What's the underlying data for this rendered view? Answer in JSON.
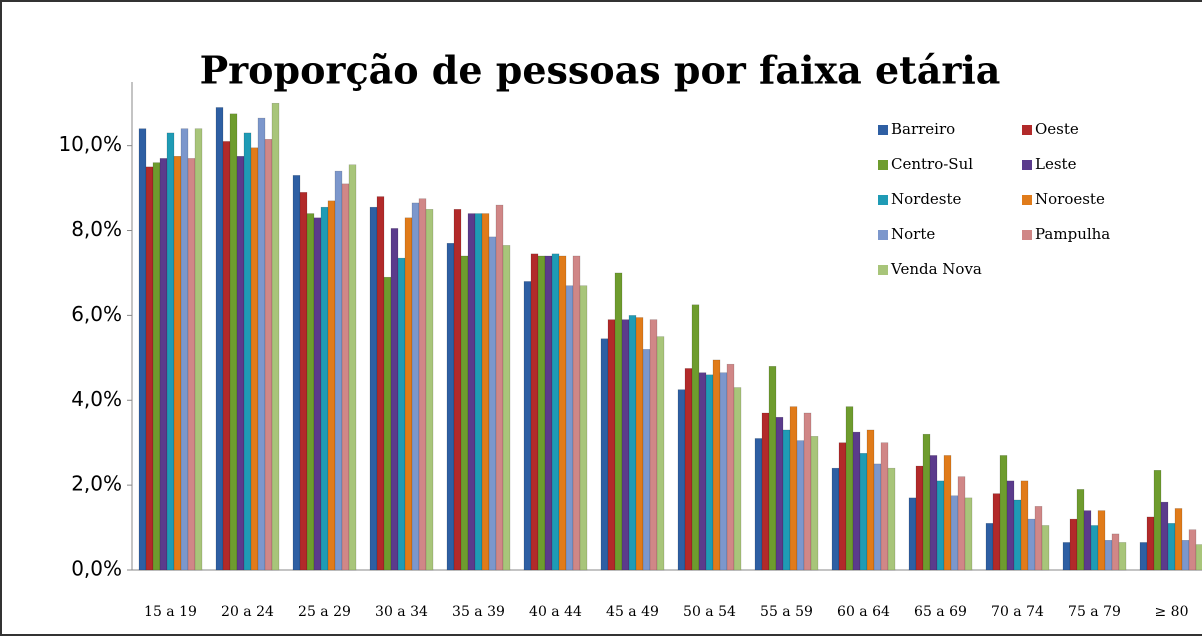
{
  "chart_data": {
    "type": "bar",
    "title": "Proporção de pessoas por faixa etária",
    "categories": [
      "15 a 19",
      "20 a 24",
      "25 a 29",
      "30 a 34",
      "35 a 39",
      "40 a 44",
      "45 a 49",
      "50 a 54",
      "55 a 59",
      "60 a 64",
      "65 a 69",
      "70 a 74",
      "75 a 79",
      "≥ 80"
    ],
    "series": [
      {
        "name": "Barreiro",
        "color": "#2e5fa3",
        "values": [
          10.4,
          10.9,
          9.3,
          8.55,
          7.7,
          6.8,
          5.45,
          4.25,
          3.1,
          2.4,
          1.7,
          1.1,
          0.65,
          0.65
        ]
      },
      {
        "name": "Oeste",
        "color": "#b22a2a",
        "values": [
          9.5,
          10.1,
          8.9,
          8.8,
          8.5,
          7.45,
          5.9,
          4.75,
          3.7,
          3.0,
          2.45,
          1.8,
          1.2,
          1.25
        ]
      },
      {
        "name": "Centro-Sul",
        "color": "#6e9c2e",
        "values": [
          9.6,
          10.75,
          8.4,
          6.9,
          7.4,
          7.4,
          7.0,
          6.25,
          4.8,
          3.85,
          3.2,
          2.7,
          1.9,
          2.35
        ]
      },
      {
        "name": "Leste",
        "color": "#5b3b8c",
        "values": [
          9.7,
          9.75,
          8.3,
          8.05,
          8.4,
          7.4,
          5.9,
          4.65,
          3.6,
          3.25,
          2.7,
          2.1,
          1.4,
          1.6
        ]
      },
      {
        "name": "Nordeste",
        "color": "#1f9bb5",
        "values": [
          10.3,
          10.3,
          8.55,
          7.35,
          8.4,
          7.45,
          6.0,
          4.6,
          3.3,
          2.75,
          2.1,
          1.65,
          1.05,
          1.1
        ]
      },
      {
        "name": "Noroeste",
        "color": "#e07b1a",
        "values": [
          9.75,
          9.95,
          8.7,
          8.3,
          8.4,
          7.4,
          5.95,
          4.95,
          3.85,
          3.3,
          2.7,
          2.1,
          1.4,
          1.45
        ]
      },
      {
        "name": "Norte",
        "color": "#7c97cc",
        "values": [
          10.4,
          10.65,
          9.4,
          8.65,
          7.85,
          6.7,
          5.2,
          4.65,
          3.05,
          2.5,
          1.75,
          1.2,
          0.7,
          0.7
        ]
      },
      {
        "name": "Pampulha",
        "color": "#d08787",
        "values": [
          9.7,
          10.15,
          9.1,
          8.75,
          8.6,
          7.4,
          5.9,
          4.85,
          3.7,
          3.0,
          2.2,
          1.5,
          0.85,
          0.95
        ]
      },
      {
        "name": "Venda Nova",
        "color": "#a8c57a",
        "values": [
          10.4,
          11.0,
          9.55,
          8.5,
          7.65,
          6.7,
          5.5,
          4.3,
          3.15,
          2.4,
          1.7,
          1.05,
          0.65,
          0.6
        ]
      }
    ],
    "ylim": [
      0,
      11.5
    ],
    "yticks": [
      {
        "value": 0,
        "label": "0,0%"
      },
      {
        "value": 2,
        "label": "2,0%"
      },
      {
        "value": 4,
        "label": "4,0%"
      },
      {
        "value": 6,
        "label": "6,0%"
      },
      {
        "value": 8,
        "label": "8,0%"
      },
      {
        "value": 10,
        "label": "10,0%"
      }
    ],
    "grid": false,
    "legend": "upper right"
  }
}
